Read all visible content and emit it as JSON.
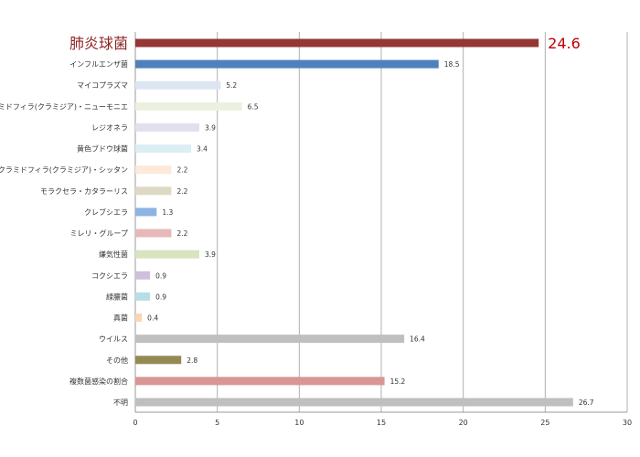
{
  "chart_data": {
    "type": "bar",
    "orientation": "horizontal",
    "title": "",
    "xlabel": "",
    "ylabel": "",
    "xlim": [
      0,
      30
    ],
    "xticks": [
      0,
      5,
      10,
      15,
      20,
      25,
      30
    ],
    "grid": true,
    "legend": "none",
    "highlight_index": 0,
    "categories": [
      "肺炎球菌",
      "インフルエンザ菌",
      "マイコプラズマ",
      "クラミドフィラ(クラミジア)・ニューモニエ",
      "レジオネラ",
      "黄色ブドウ球菌",
      "クラミドフィラ(クラミジア)・シッタン",
      "モラクセラ・カタラーリス",
      "クレブシエラ",
      "ミレリ・グループ",
      "嫌気性菌",
      "コクシエラ",
      "緑膿菌",
      "真菌",
      "ウイルス",
      "その他",
      "複数菌感染の割合",
      "不明"
    ],
    "values": [
      24.6,
      18.5,
      5.2,
      6.5,
      3.9,
      3.4,
      2.2,
      2.2,
      1.3,
      2.2,
      3.9,
      0.9,
      0.9,
      0.4,
      16.4,
      2.8,
      15.2,
      26.7
    ],
    "value_labels": [
      "24.6",
      "18.5",
      "5.2",
      "6.5",
      "3.9",
      "3.4",
      "2.2",
      "2.2",
      "1.3",
      "2.2",
      "3.9",
      "0.9",
      "0.9",
      "0.4",
      "16.4",
      "2.8",
      "15.2",
      "26.7"
    ],
    "colors": [
      "#953735",
      "#4f81bd",
      "#dce6f2",
      "#ebf1de",
      "#e4dfec",
      "#daeef3",
      "#fde9d9",
      "#ddd9c4",
      "#8db4e2",
      "#e6b9b8",
      "#d7e4bd",
      "#ccc0da",
      "#b7dee8",
      "#fcd5b4",
      "#bfbfbf",
      "#948a54",
      "#da9694",
      "#bfbfbf"
    ]
  }
}
